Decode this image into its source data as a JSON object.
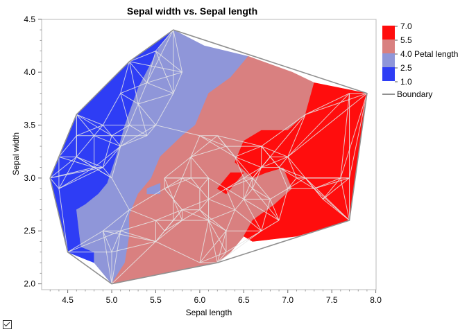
{
  "chart_data": {
    "type": "contour",
    "title": "Sepal width vs. Sepal length",
    "xlabel": "Sepal length",
    "ylabel": "Sepal width",
    "xlim": [
      4.2,
      8.0
    ],
    "ylim": [
      1.9,
      4.5
    ],
    "xticks": [
      "4.5",
      "5.0",
      "5.5",
      "6.0",
      "6.5",
      "7.0",
      "7.5",
      "8.0"
    ],
    "yticks": [
      "2.0",
      "2.5",
      "3.0",
      "3.5",
      "4.0",
      "4.5"
    ],
    "legend": {
      "placement": "right",
      "variable": "Petal length",
      "levels": [
        {
          "label": "7.0",
          "color": "#ff0d0d"
        },
        {
          "label": "5.5",
          "color": "#d98080"
        },
        {
          "label": "4.0 Petal length",
          "color": "#d98080"
        },
        {
          "label": "2.5",
          "color": "#8f96d9"
        },
        {
          "label": "1.0",
          "color": "#2e3df5"
        }
      ],
      "boundary_label": "Boundary"
    },
    "colors": {
      "level_7_0": "#ff0d0d",
      "level_5_5": "#d98080",
      "level_2_5": "#8f96d9",
      "level_1_0": "#2e3df5",
      "boundary": "#909090",
      "triangulation": "#e6e6e6"
    },
    "boundary_hull": [
      [
        5.7,
        4.4
      ],
      [
        7.9,
        3.8
      ],
      [
        7.7,
        2.6
      ],
      [
        6.2,
        2.2
      ],
      [
        5.0,
        2.0
      ],
      [
        4.5,
        2.3
      ],
      [
        4.3,
        3.0
      ],
      [
        4.6,
        3.6
      ],
      [
        5.2,
        4.1
      ]
    ],
    "regions": [
      {
        "level": "1.0",
        "points": [
          [
            5.7,
            4.4
          ],
          [
            5.55,
            4.25
          ],
          [
            5.3,
            3.85
          ],
          [
            5.15,
            3.5
          ],
          [
            5.05,
            3.2
          ],
          [
            4.95,
            2.95
          ],
          [
            4.85,
            2.85
          ],
          [
            4.7,
            2.75
          ],
          [
            4.6,
            2.7
          ],
          [
            4.65,
            2.35
          ],
          [
            4.8,
            2.3
          ],
          [
            4.8,
            2.2
          ],
          [
            4.5,
            2.3
          ],
          [
            4.3,
            3.0
          ],
          [
            4.6,
            3.6
          ],
          [
            5.2,
            4.1
          ]
        ]
      },
      {
        "level": "2.5",
        "points": [
          [
            5.7,
            4.4
          ],
          [
            6.05,
            4.25
          ],
          [
            6.55,
            4.15
          ],
          [
            6.35,
            3.95
          ],
          [
            6.1,
            3.8
          ],
          [
            5.95,
            3.5
          ],
          [
            5.8,
            3.4
          ],
          [
            5.55,
            3.2
          ],
          [
            5.45,
            3.0
          ],
          [
            5.3,
            2.85
          ],
          [
            5.2,
            2.65
          ],
          [
            5.2,
            2.45
          ],
          [
            5.15,
            2.2
          ],
          [
            5.0,
            2.0
          ],
          [
            4.8,
            2.2
          ],
          [
            4.8,
            2.3
          ],
          [
            4.65,
            2.35
          ],
          [
            4.6,
            2.7
          ],
          [
            4.7,
            2.75
          ],
          [
            4.85,
            2.85
          ],
          [
            4.95,
            2.95
          ],
          [
            5.05,
            3.2
          ],
          [
            5.15,
            3.5
          ],
          [
            5.3,
            3.85
          ],
          [
            5.55,
            4.25
          ]
        ]
      },
      {
        "level": "5.5",
        "points": [
          [
            6.55,
            4.15
          ],
          [
            7.05,
            4.0
          ],
          [
            7.3,
            3.9
          ],
          [
            7.2,
            3.6
          ],
          [
            7.0,
            3.45
          ],
          [
            6.7,
            3.45
          ],
          [
            6.5,
            3.35
          ],
          [
            6.4,
            3.15
          ],
          [
            6.6,
            3.0
          ],
          [
            6.75,
            3.05
          ],
          [
            6.95,
            3.1
          ],
          [
            7.05,
            2.9
          ],
          [
            6.85,
            2.75
          ],
          [
            6.6,
            2.6
          ],
          [
            6.5,
            2.45
          ],
          [
            6.35,
            2.3
          ],
          [
            6.2,
            2.2
          ],
          [
            5.0,
            2.0
          ],
          [
            5.15,
            2.2
          ],
          [
            5.2,
            2.45
          ],
          [
            5.2,
            2.65
          ],
          [
            5.3,
            2.85
          ],
          [
            5.45,
            3.0
          ],
          [
            5.55,
            3.2
          ],
          [
            5.8,
            3.4
          ],
          [
            5.95,
            3.5
          ],
          [
            6.1,
            3.8
          ],
          [
            6.35,
            3.95
          ]
        ]
      },
      {
        "level": "7.0",
        "points": [
          [
            7.3,
            3.9
          ],
          [
            7.9,
            3.8
          ],
          [
            7.7,
            2.6
          ],
          [
            7.1,
            2.45
          ],
          [
            6.6,
            2.4
          ],
          [
            6.5,
            2.45
          ],
          [
            6.6,
            2.6
          ],
          [
            6.85,
            2.75
          ],
          [
            7.05,
            2.9
          ],
          [
            6.95,
            3.1
          ],
          [
            6.75,
            3.05
          ],
          [
            6.6,
            3.0
          ],
          [
            6.4,
            3.15
          ],
          [
            6.5,
            3.35
          ],
          [
            6.7,
            3.45
          ],
          [
            7.0,
            3.45
          ],
          [
            7.2,
            3.6
          ]
        ]
      },
      {
        "level": "7.0",
        "points": [
          [
            6.35,
            3.05
          ],
          [
            6.5,
            3.05
          ],
          [
            6.3,
            2.85
          ],
          [
            6.2,
            2.9
          ]
        ]
      },
      {
        "level": "2.5",
        "points": [
          [
            5.4,
            2.9
          ],
          [
            5.55,
            2.95
          ],
          [
            5.55,
            2.85
          ],
          [
            5.4,
            2.85
          ]
        ]
      }
    ],
    "triangulation_nodes": [
      [
        5.7,
        4.4
      ],
      [
        7.9,
        3.8
      ],
      [
        7.7,
        2.6
      ],
      [
        6.2,
        2.2
      ],
      [
        5.0,
        2.0
      ],
      [
        4.5,
        2.3
      ],
      [
        4.3,
        3.0
      ],
      [
        4.6,
        3.6
      ],
      [
        5.2,
        4.1
      ],
      [
        5.5,
        4.2
      ],
      [
        5.8,
        4.0
      ],
      [
        5.1,
        3.8
      ],
      [
        5.4,
        3.9
      ],
      [
        4.9,
        3.5
      ],
      [
        5.0,
        3.4
      ],
      [
        4.8,
        3.1
      ],
      [
        4.4,
        2.9
      ],
      [
        4.6,
        3.2
      ],
      [
        5.2,
        3.5
      ],
      [
        5.5,
        3.5
      ],
      [
        5.7,
        3.8
      ],
      [
        4.8,
        3.4
      ],
      [
        5.0,
        3.0
      ],
      [
        4.9,
        2.5
      ],
      [
        5.1,
        2.5
      ],
      [
        5.6,
        2.5
      ],
      [
        5.8,
        2.7
      ],
      [
        5.7,
        2.8
      ],
      [
        6.0,
        2.2
      ],
      [
        6.0,
        2.9
      ],
      [
        6.1,
        3.0
      ],
      [
        6.3,
        2.3
      ],
      [
        5.9,
        3.2
      ],
      [
        6.3,
        3.3
      ],
      [
        6.4,
        3.2
      ],
      [
        6.7,
        3.1
      ],
      [
        6.5,
        2.8
      ],
      [
        6.8,
        2.8
      ],
      [
        7.0,
        3.2
      ],
      [
        7.2,
        3.6
      ],
      [
        7.7,
        3.8
      ],
      [
        7.7,
        3.0
      ],
      [
        7.2,
        3.0
      ],
      [
        6.9,
        3.1
      ],
      [
        6.7,
        2.5
      ],
      [
        6.3,
        2.5
      ],
      [
        5.5,
        2.4
      ],
      [
        5.8,
        2.6
      ],
      [
        6.1,
        2.8
      ],
      [
        6.5,
        3.0
      ],
      [
        6.6,
        2.9
      ],
      [
        6.2,
        3.4
      ],
      [
        5.6,
        3.0
      ],
      [
        5.4,
        3.4
      ],
      [
        5.8,
        3.0
      ],
      [
        6.4,
        2.7
      ],
      [
        7.1,
        3.0
      ],
      [
        7.4,
        2.8
      ],
      [
        7.6,
        3.0
      ],
      [
        6.9,
        2.6
      ],
      [
        5.2,
        2.7
      ],
      [
        4.9,
        3.1
      ],
      [
        5.3,
        3.7
      ],
      [
        5.1,
        3.3
      ],
      [
        6.0,
        3.4
      ],
      [
        6.7,
        3.3
      ],
      [
        6.3,
        2.9
      ],
      [
        5.9,
        3.0
      ],
      [
        6.1,
        2.6
      ],
      [
        5.7,
        2.6
      ],
      [
        7.3,
        2.9
      ],
      [
        6.8,
        3.2
      ],
      [
        5.0,
        2.3
      ],
      [
        4.6,
        3.4
      ],
      [
        4.4,
        3.2
      ],
      [
        5.5,
        2.6
      ],
      [
        6.6,
        3.0
      ],
      [
        6.0,
        2.7
      ],
      [
        5.6,
        2.9
      ],
      [
        7.0,
        2.9
      ]
    ]
  }
}
